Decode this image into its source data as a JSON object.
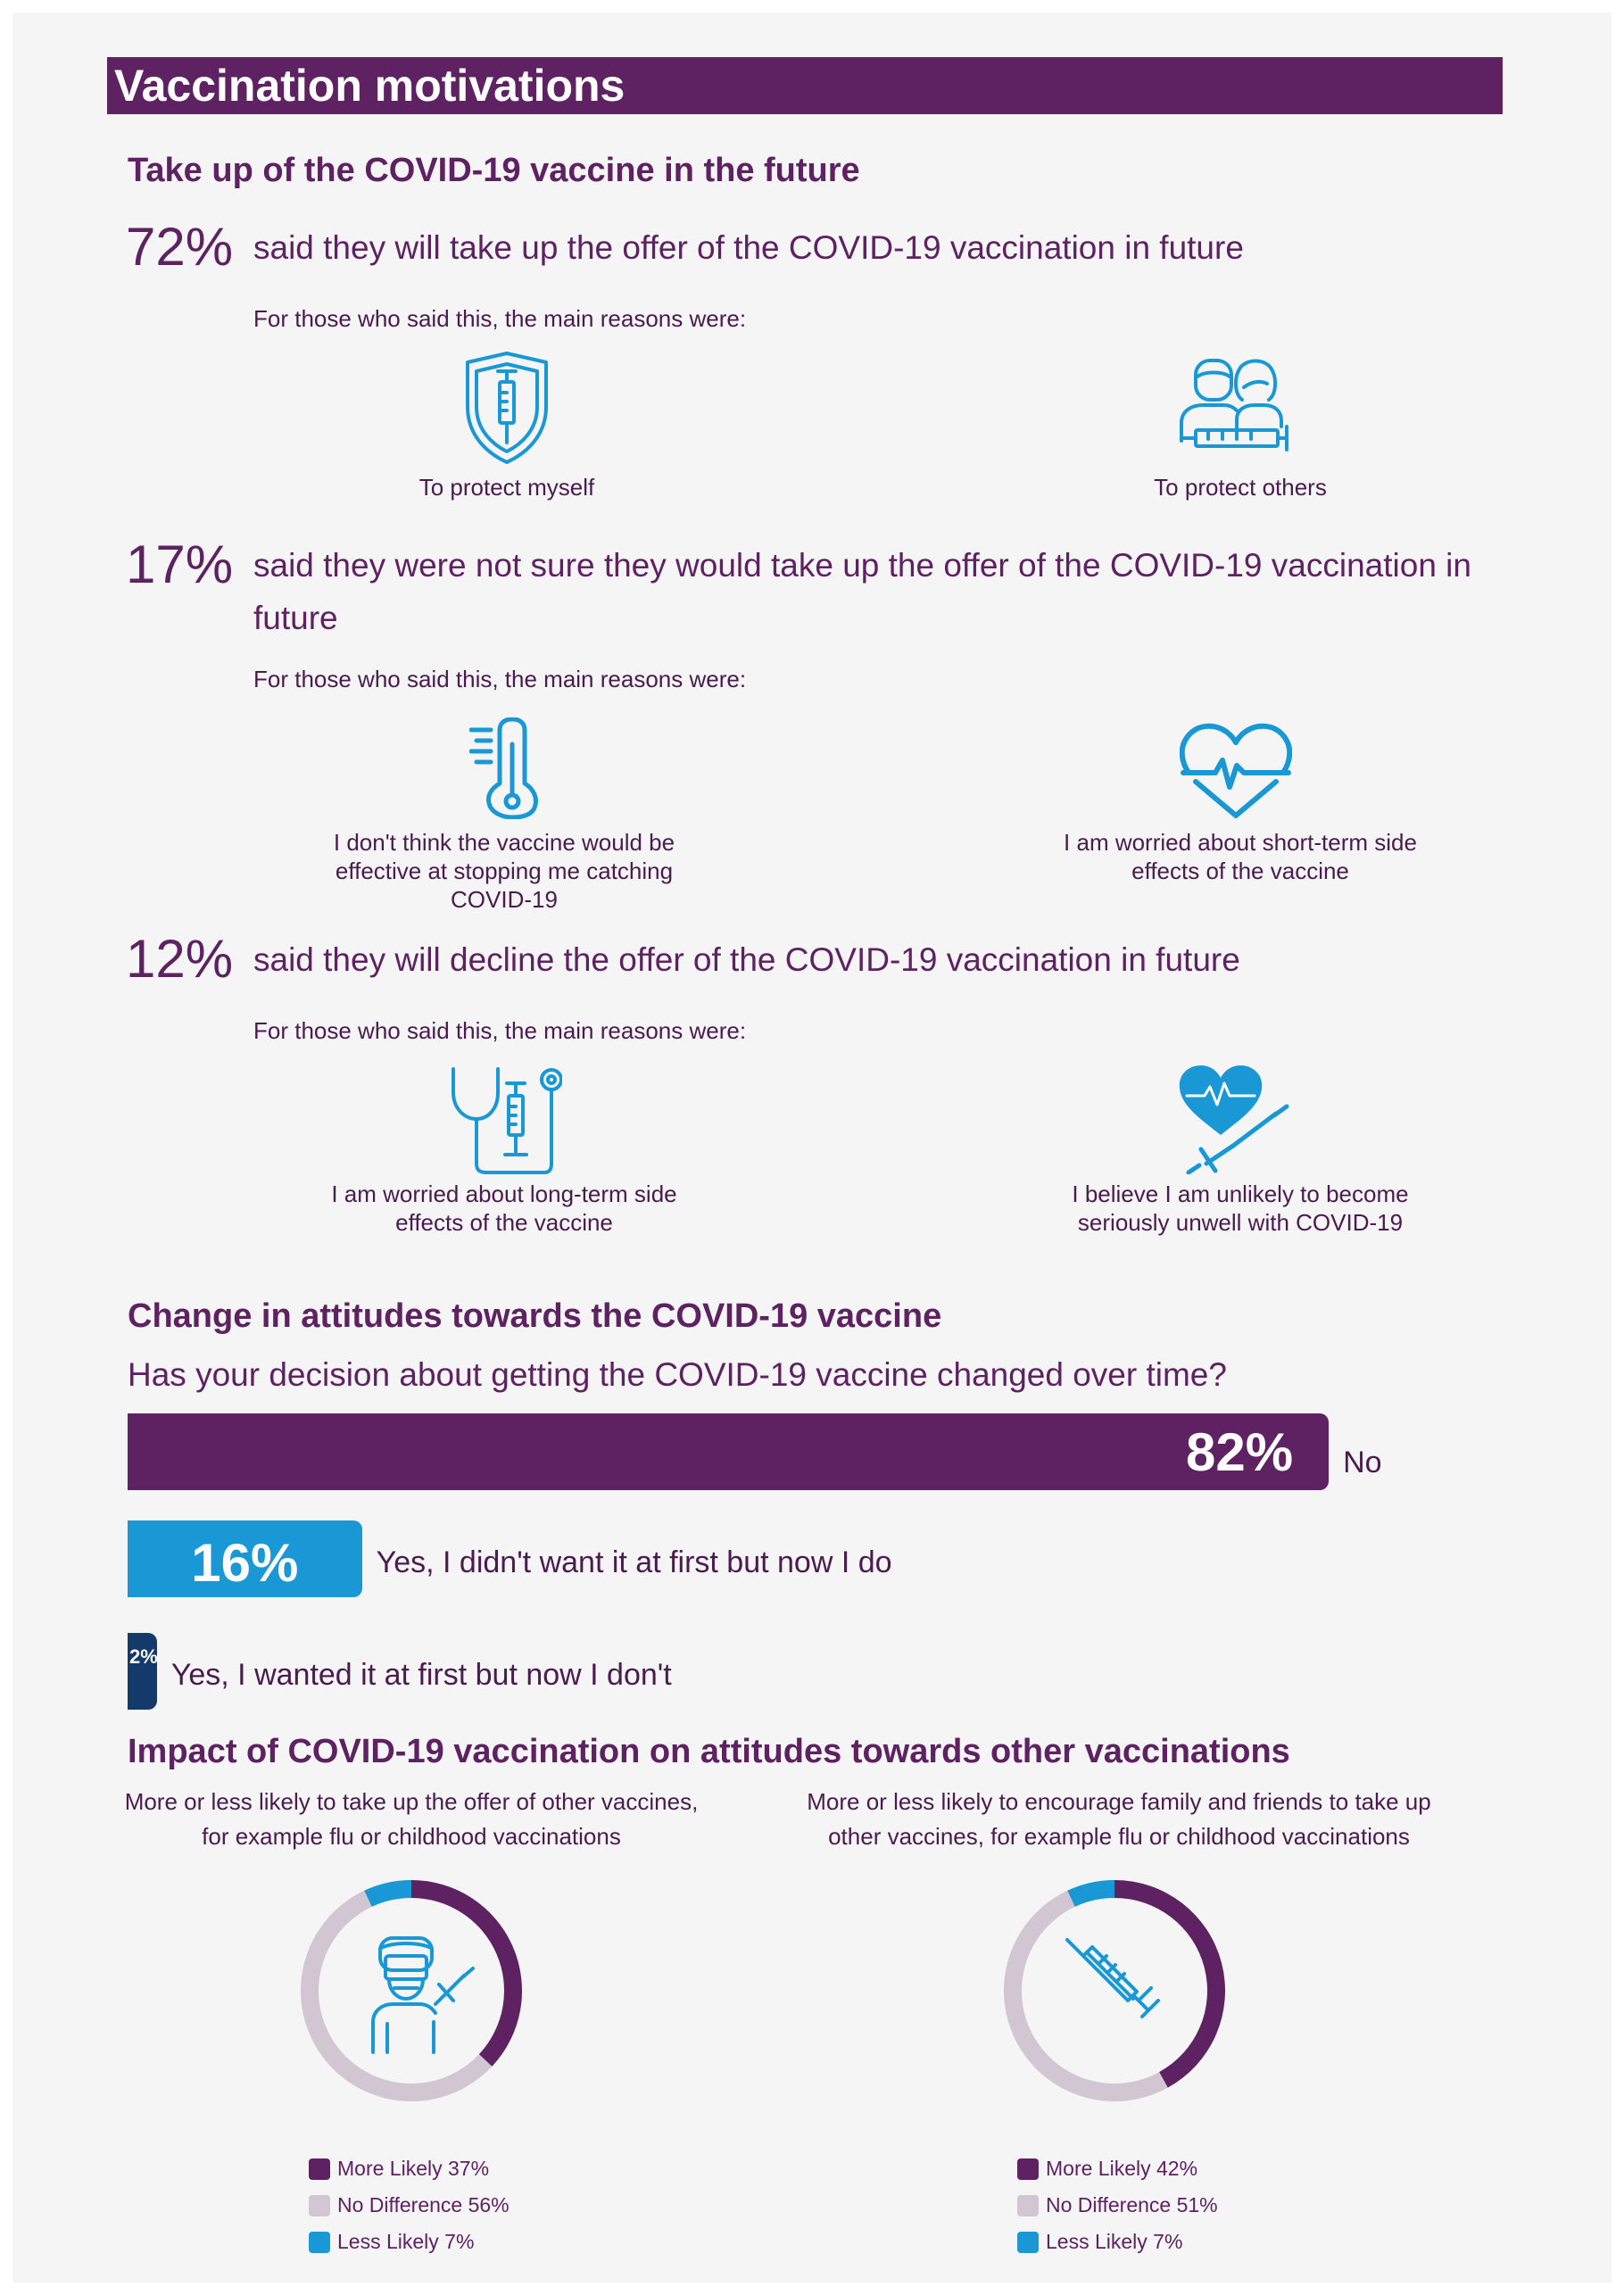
{
  "header": {
    "title": "Vaccination motivations"
  },
  "takeup": {
    "heading": "Take up of the COVID-19 vaccine in the future",
    "groups": [
      {
        "percent": "72%",
        "statement": "said they will take up the offer of the COVID-19 vaccination in future",
        "intro": "For those who said this, the main reasons were:",
        "reasons": [
          {
            "icon": "shield-syringe-icon",
            "label": "To protect myself"
          },
          {
            "icon": "people-syringe-icon",
            "label": "To protect others"
          }
        ]
      },
      {
        "percent": "17%",
        "statement": "said they were not sure they would take up the offer of the COVID-19 vaccination in future",
        "intro": "For those who said this, the main reasons were:",
        "reasons": [
          {
            "icon": "thermometer-icon",
            "label": "I don't think the vaccine would be effective at stopping me catching COVID-19"
          },
          {
            "icon": "heartbeat-icon",
            "label": "I am worried about short-term side effects of the vaccine"
          }
        ]
      },
      {
        "percent": "12%",
        "statement": "said they will decline the offer of the COVID-19 vaccination in future",
        "intro": "For those who said this, the main reasons were:",
        "reasons": [
          {
            "icon": "stethoscope-syringe-icon",
            "label": "I am worried about long-term side effects of the vaccine"
          },
          {
            "icon": "heart-syringe-icon",
            "label": "I believe I am unlikely to become seriously unwell with COVID-19"
          }
        ]
      }
    ]
  },
  "attitudes": {
    "heading": "Change in attitudes towards the COVID-19 vaccine",
    "question": "Has your decision about getting the COVID-19 vaccine changed over time?"
  },
  "impact": {
    "heading": "Impact of COVID-19 vaccination on attitudes towards other vaccinations"
  },
  "chart_data": [
    {
      "type": "bar",
      "orientation": "horizontal",
      "categories": [
        "No",
        "Yes, I didn't want it at first but now I do",
        "Yes, I wanted it at first but now I don't"
      ],
      "values": [
        82,
        16,
        2
      ],
      "value_labels": [
        "82%",
        "16%",
        "2%"
      ],
      "colors": [
        "#5e2162",
        "#1a98d5",
        "#133a6b"
      ]
    },
    {
      "type": "pie",
      "subtitle": "More or less likely to take up the offer of other vaccines, for example flu or childhood vaccinations",
      "icon": "person-vaccination-icon",
      "slices": [
        {
          "name": "More Likely",
          "label": "More Likely 37%",
          "value": 37,
          "color": "#5e2162"
        },
        {
          "name": "No Difference",
          "label": "No Difference 56%",
          "value": 56,
          "color": "#d3c6d3"
        },
        {
          "name": "Less Likely",
          "label": "Less Likely 7%",
          "value": 7,
          "color": "#1a98d5"
        }
      ]
    },
    {
      "type": "pie",
      "subtitle": "More or less likely to encourage family and friends to take up other vaccines, for example flu or childhood vaccinations",
      "icon": "syringe-icon",
      "slices": [
        {
          "name": "More Likely",
          "label": "More Likely 42%",
          "value": 42,
          "color": "#5e2162"
        },
        {
          "name": "No Difference",
          "label": "No Difference 51%",
          "value": 51,
          "color": "#d3c6d3"
        },
        {
          "name": "Less Likely",
          "label": "Less Likely 7%",
          "value": 7,
          "color": "#1a98d5"
        }
      ]
    }
  ]
}
